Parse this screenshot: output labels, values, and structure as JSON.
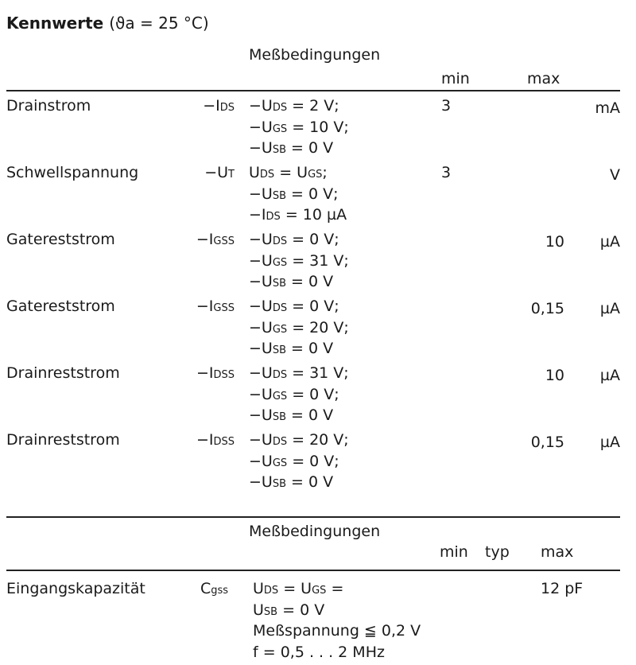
{
  "title": {
    "bold": "Kennwerte",
    "condition": "(ϑa = 25 °C)"
  },
  "table1": {
    "conditions_header": "Meßbedingungen",
    "col_min": "min",
    "col_max": "max",
    "rows": [
      {
        "name": "Drainstrom",
        "symbol": {
          "pre": "−I",
          "sub": "DS"
        },
        "conditions": [
          {
            "pre": "−U",
            "sub": "DS",
            "post": " =  2 V;"
          },
          {
            "pre": "−U",
            "sub": "GS",
            "post": " = 10 V;"
          },
          {
            "pre": "−U",
            "sub": "SB",
            "post": " =  0 V"
          }
        ],
        "min": "3",
        "max": "",
        "unit": "mA"
      },
      {
        "name": "Schwellspannung",
        "symbol": {
          "pre": "−U",
          "sub": "T"
        },
        "conditions": [
          {
            "pre": "U",
            "sub": "DS",
            "post": "  = U",
            "sub2": "GS",
            "post2": ";"
          },
          {
            "pre": "−U",
            "sub": "SB",
            "post": " =  0 V;"
          },
          {
            "pre": "−I",
            "sub": "DS",
            "post": "  = 10 µA"
          }
        ],
        "min": "3",
        "max": "",
        "unit": "V"
      },
      {
        "name": "Gatereststrom",
        "symbol": {
          "pre": "−I",
          "sub": "GSS"
        },
        "conditions": [
          {
            "pre": "−U",
            "sub": "DS",
            "post": " =  0 V;"
          },
          {
            "pre": "−U",
            "sub": "GS",
            "post": " = 31 V;"
          },
          {
            "pre": "−U",
            "sub": "SB",
            "post": " =  0 V"
          }
        ],
        "min": "",
        "max": "10",
        "unit": "µA"
      },
      {
        "name": "Gatereststrom",
        "symbol": {
          "pre": "−I",
          "sub": "GSS"
        },
        "conditions": [
          {
            "pre": "−U",
            "sub": "DS",
            "post": " =  0 V;"
          },
          {
            "pre": "−U",
            "sub": "GS",
            "post": " = 20 V;"
          },
          {
            "pre": "−U",
            "sub": "SB",
            "post": " =  0 V"
          }
        ],
        "min": "",
        "max": "0,15",
        "unit": "µA"
      },
      {
        "name": "Drainreststrom",
        "symbol": {
          "pre": "−I",
          "sub": "DSS"
        },
        "conditions": [
          {
            "pre": "−U",
            "sub": "DS",
            "post": " = 31 V;"
          },
          {
            "pre": "−U",
            "sub": "GS",
            "post": " =  0 V;"
          },
          {
            "pre": "−U",
            "sub": "SB",
            "post": " =  0 V"
          }
        ],
        "min": "",
        "max": "10",
        "unit": "µA"
      },
      {
        "name": "Drainreststrom",
        "symbol": {
          "pre": "−I",
          "sub": "DSS"
        },
        "conditions": [
          {
            "pre": "−U",
            "sub": "DS",
            "post": " = 20 V;"
          },
          {
            "pre": "−U",
            "sub": "GS",
            "post": " =  0 V;"
          },
          {
            "pre": "−U",
            "sub": "SB",
            "post": " =  0 V"
          }
        ],
        "min": "",
        "max": "0,15",
        "unit": "µA"
      }
    ]
  },
  "table2": {
    "conditions_header": "Meßbedingungen",
    "col_min": "min",
    "col_typ": "typ",
    "col_max": "max",
    "row": {
      "name": "Eingangskapazität",
      "symbol": {
        "pre": "C",
        "sub": "gss"
      },
      "conditions": [
        {
          "pre": "U",
          "sub": "DS",
          "post": " = U",
          "sub2": "GS",
          "post2": " ="
        },
        {
          "pre": "U",
          "sub": "SB",
          "post": " = 0 V"
        },
        {
          "pre": "Meßspannung ≦ 0,2 V",
          "sub": "",
          "post": ""
        },
        {
          "pre": "f = 0,5 . . . 2 MHz",
          "sub": "",
          "post": ""
        }
      ],
      "max": "12 pF"
    }
  }
}
